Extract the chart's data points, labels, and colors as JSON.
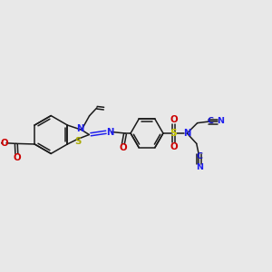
{
  "bg_color": "#e8e8e8",
  "bond_color": "#1a1a1a",
  "n_color": "#2020ee",
  "o_color": "#cc0000",
  "s_color": "#cccc00",
  "c_color": "#1111cc",
  "lw": 1.1,
  "fs": 6.5,
  "xlim": [
    0,
    10
  ],
  "ylim": [
    0,
    10
  ]
}
